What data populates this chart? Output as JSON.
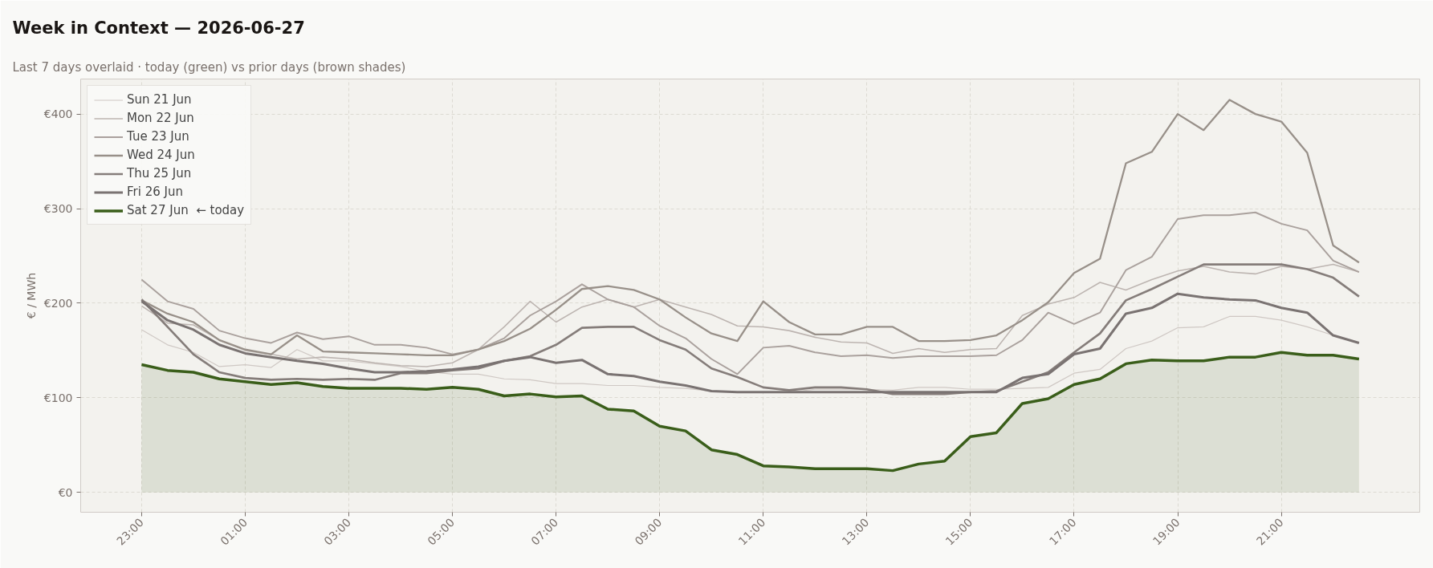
{
  "chart_data": {
    "type": "line",
    "title": "Week in Context — 2026-06-27",
    "subtitle": "Last 7 days overlaid  ·  today (green) vs prior days (brown shades)",
    "ylabel": "€ / MWh",
    "categories": [
      "23:00",
      null,
      null,
      null,
      "01:00",
      null,
      null,
      null,
      "03:00",
      null,
      null,
      null,
      "05:00",
      null,
      null,
      null,
      "07:00",
      null,
      null,
      null,
      "09:00",
      null,
      null,
      null,
      "11:00",
      null,
      null,
      null,
      "13:00",
      null,
      null,
      null,
      "15:00",
      null,
      null,
      null,
      "17:00",
      null,
      null,
      null,
      "19:00",
      null,
      null,
      null,
      "21:00",
      null,
      null,
      null
    ],
    "ylim": [
      -21,
      437
    ],
    "yticks": [
      {
        "value": 0,
        "label": "€0"
      },
      {
        "value": 100,
        "label": "€100"
      },
      {
        "value": 200,
        "label": "€200"
      },
      {
        "value": 300,
        "label": "€300"
      },
      {
        "value": 400,
        "label": "€400"
      }
    ],
    "grid": true,
    "legend": "top left",
    "series": [
      {
        "name": "Sun 21 Jun",
        "color": "#cfc8c4",
        "type": "line",
        "values": [
          172,
          156,
          148,
          133,
          135,
          132,
          151,
          139,
          139,
          136,
          133,
          128,
          125,
          125,
          120,
          119,
          115,
          115,
          113,
          113,
          111,
          110,
          107,
          106,
          106,
          106,
          109,
          109,
          109,
          108,
          111,
          111,
          109,
          109,
          110,
          111,
          126,
          130,
          152,
          160,
          174,
          175,
          186,
          186,
          182,
          175,
          166,
          158
        ]
      },
      {
        "name": "Mon 22 Jun",
        "color": "#bdb5b1",
        "type": "line",
        "values": [
          197,
          179,
          177,
          161,
          150,
          146,
          141,
          143,
          141,
          137,
          134,
          133,
          137,
          151,
          175,
          202,
          180,
          196,
          204,
          196,
          204,
          196,
          188,
          176,
          175,
          171,
          164,
          159,
          158,
          147,
          152,
          148,
          151,
          152,
          187,
          199,
          206,
          222,
          214,
          225,
          234,
          239,
          233,
          231,
          239,
          236,
          241,
          233
        ]
      },
      {
        "name": "Tue 23 Jun",
        "color": "#aaa19d",
        "type": "line",
        "values": [
          225,
          202,
          194,
          171,
          163,
          158,
          169,
          162,
          165,
          156,
          156,
          153,
          146,
          151,
          163,
          187,
          202,
          220,
          204,
          196,
          176,
          163,
          141,
          125,
          153,
          155,
          148,
          144,
          145,
          142,
          144,
          144,
          144,
          145,
          161,
          190,
          178,
          190,
          235,
          249,
          289,
          293,
          293,
          296,
          284,
          277,
          245,
          233
        ]
      },
      {
        "name": "Wed 24 Jun",
        "color": "#989089",
        "type": "line",
        "values": [
          203,
          189,
          180,
          161,
          151,
          146,
          166,
          149,
          148,
          147,
          146,
          145,
          145,
          151,
          160,
          173,
          193,
          215,
          218,
          214,
          204,
          185,
          168,
          160,
          202,
          180,
          167,
          167,
          175,
          175,
          160,
          160,
          161,
          166,
          182,
          201,
          232,
          247,
          348,
          360,
          400,
          383,
          415,
          400,
          392,
          359,
          261,
          243
        ]
      },
      {
        "name": "Thu 25 Jun",
        "color": "#857d7a",
        "type": "line",
        "values": [
          204,
          175,
          146,
          127,
          121,
          119,
          120,
          119,
          120,
          119,
          126,
          126,
          129,
          131,
          139,
          144,
          156,
          174,
          175,
          175,
          161,
          151,
          131,
          122,
          111,
          108,
          111,
          111,
          109,
          104,
          104,
          104,
          106,
          107,
          117,
          127,
          148,
          168,
          203,
          215,
          228,
          241,
          241,
          241,
          241,
          236,
          227,
          207
        ]
      },
      {
        "name": "Fri 26 Jun",
        "color": "#7a7372",
        "type": "line",
        "values": [
          202,
          182,
          172,
          156,
          147,
          143,
          139,
          136,
          131,
          127,
          127,
          128,
          130,
          133,
          139,
          143,
          137,
          140,
          125,
          123,
          117,
          113,
          107,
          106,
          106,
          106,
          106,
          106,
          106,
          106,
          106,
          106,
          106,
          106,
          121,
          125,
          146,
          152,
          189,
          195,
          210,
          206,
          204,
          203,
          195,
          190,
          166,
          158
        ]
      },
      {
        "name": "Sat 27 Jun  ← today",
        "color": "#3a5e1a",
        "type": "area",
        "values": [
          135,
          129,
          127,
          120,
          117,
          114,
          116,
          112,
          110,
          110,
          110,
          109,
          111,
          109,
          102,
          104,
          101,
          102,
          88,
          86,
          70,
          65,
          45,
          40,
          28,
          27,
          25,
          25,
          25,
          23,
          30,
          33,
          59,
          63,
          94,
          99,
          114,
          120,
          136,
          140,
          139,
          139,
          143,
          143,
          148,
          145,
          145,
          141
        ]
      }
    ]
  }
}
